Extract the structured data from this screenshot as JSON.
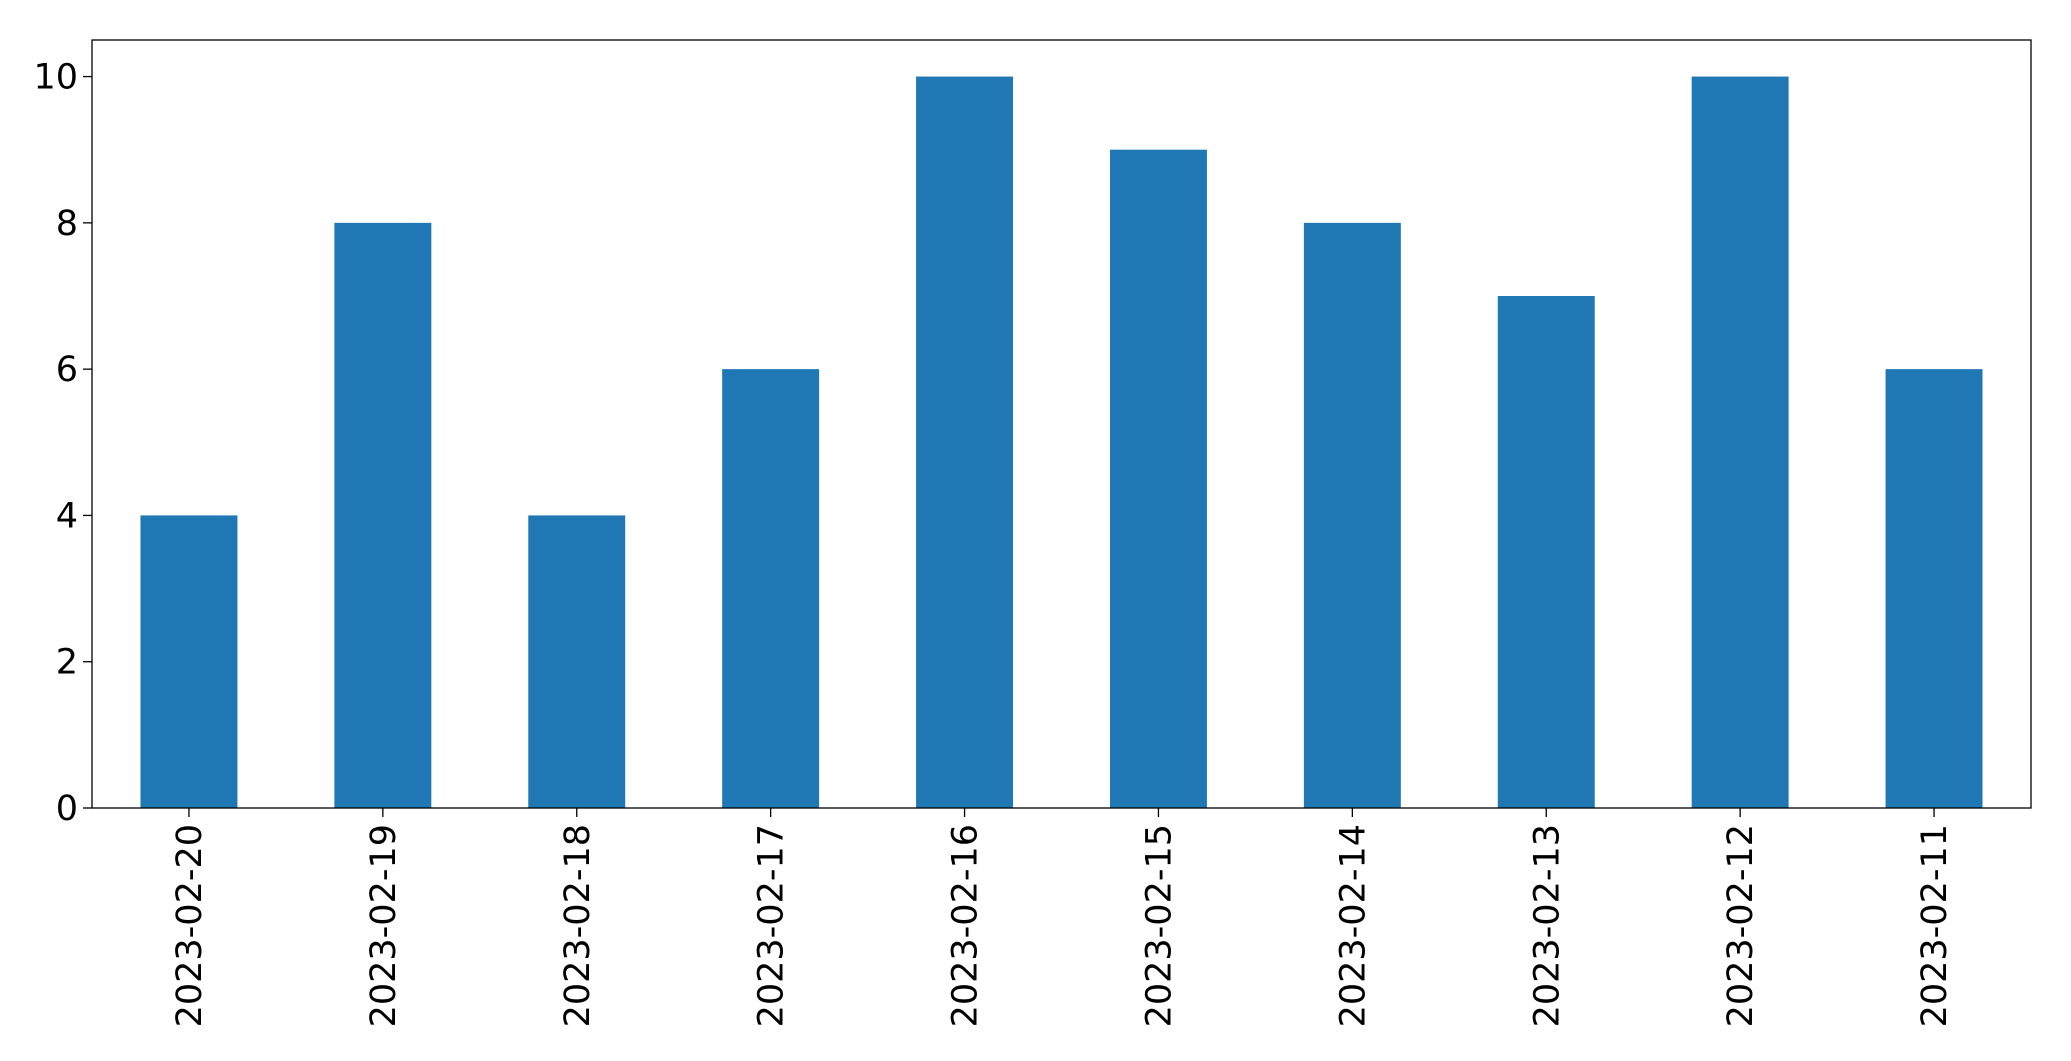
{
  "chart_data": {
    "type": "bar",
    "categories": [
      "2023-02-20",
      "2023-02-19",
      "2023-02-18",
      "2023-02-17",
      "2023-02-16",
      "2023-02-15",
      "2023-02-14",
      "2023-02-13",
      "2023-02-12",
      "2023-02-11"
    ],
    "values": [
      4,
      8,
      4,
      6,
      10,
      9,
      8,
      7,
      10,
      6
    ],
    "color": "#1f77b4",
    "ylim": [
      0,
      10.5
    ],
    "yticks": [
      0,
      2,
      4,
      6,
      8,
      10
    ],
    "grid": false
  }
}
